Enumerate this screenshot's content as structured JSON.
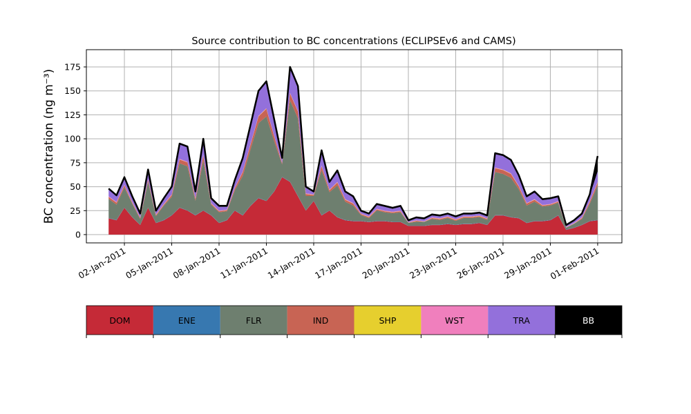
{
  "chart_data": {
    "type": "area",
    "stacked": true,
    "title": "Source contribution to BC concentrations (ECLIPSEv6 and CAMS)",
    "xlabel": "",
    "ylabel": "BC concentration (ng m⁻³)",
    "ylim": [
      -9,
      193
    ],
    "yticks": [
      0,
      25,
      50,
      75,
      100,
      125,
      150,
      175
    ],
    "x_start": "2011-01-01T00:00",
    "x_step_hours": 12,
    "x_range_days": [
      -1.4,
      32.5
    ],
    "xtick_labels": [
      "02-Jan-2011",
      "05-Jan-2011",
      "08-Jan-2011",
      "11-Jan-2011",
      "14-Jan-2011",
      "17-Jan-2011",
      "20-Jan-2011",
      "23-Jan-2011",
      "26-Jan-2011",
      "29-Jan-2011",
      "01-Feb-2011"
    ],
    "xtick_days": [
      1,
      4,
      7,
      10,
      13,
      16,
      19,
      22,
      25,
      28,
      31
    ],
    "grid": true,
    "series": [
      {
        "name": "DOM",
        "color": "#c52a37",
        "values": [
          17,
          15,
          28,
          18,
          10,
          28,
          12,
          15,
          20,
          28,
          25,
          20,
          25,
          20,
          12,
          15,
          25,
          20,
          30,
          38,
          35,
          45,
          60,
          55,
          40,
          25,
          35,
          20,
          25,
          18,
          15,
          14,
          14,
          13,
          14,
          14,
          13,
          13,
          9,
          9,
          9,
          10,
          10,
          11,
          10,
          11,
          11,
          12,
          10,
          20,
          20,
          18,
          17,
          12,
          14,
          14,
          15,
          20,
          5,
          7,
          10,
          14,
          15
        ]
      },
      {
        "name": "ENE",
        "color": "#3778b0",
        "values": [
          0.3,
          0.3,
          0.3,
          0.3,
          0.3,
          0.3,
          0.3,
          0.3,
          0.3,
          0.3,
          0.3,
          0.3,
          0.3,
          0.3,
          0.3,
          0.3,
          0.3,
          0.3,
          0.3,
          0.3,
          0.3,
          0.3,
          0.3,
          0.3,
          0.3,
          0.3,
          0.3,
          0.3,
          0.3,
          0.3,
          0.3,
          0.3,
          0.3,
          0.3,
          0.3,
          0.3,
          0.3,
          0.3,
          0.3,
          0.3,
          0.3,
          0.3,
          0.3,
          0.3,
          0.3,
          0.3,
          0.3,
          0.3,
          0.3,
          0.3,
          0.3,
          0.3,
          0.3,
          0.3,
          0.3,
          0.3,
          0.3,
          0.3,
          0.3,
          0.3,
          0.3,
          0.3,
          0.3
        ]
      },
      {
        "name": "FLR",
        "color": "#6e7f6f",
        "values": [
          20,
          16,
          21,
          14,
          6,
          27,
          7,
          15,
          19,
          46,
          46,
          15,
          52,
          11,
          11,
          9,
          21,
          41,
          59,
          78,
          88,
          52,
          13,
          85,
          81,
          15,
          5,
          47,
          19,
          33,
          19,
          16,
          6,
          4,
          11,
          9,
          9,
          10,
          3,
          4,
          4,
          6,
          5,
          6,
          4,
          6,
          6,
          6,
          5,
          45,
          43,
          41,
          30,
          18,
          20,
          15,
          15,
          13,
          2,
          4,
          6,
          18,
          36
        ]
      },
      {
        "name": "IND",
        "color": "#c86454",
        "values": [
          2,
          2,
          2,
          1,
          1,
          2,
          1,
          1,
          2,
          4,
          4,
          2,
          5,
          1,
          1,
          1,
          2,
          4,
          5,
          7,
          8,
          5,
          1,
          7,
          7,
          2,
          1,
          4,
          2,
          3,
          2,
          2,
          1,
          1,
          1,
          1,
          1,
          1,
          0,
          1,
          0,
          1,
          1,
          1,
          1,
          1,
          1,
          1,
          1,
          4,
          4,
          4,
          3,
          2,
          2,
          1,
          1,
          1,
          0,
          0,
          1,
          2,
          3
        ]
      },
      {
        "name": "SHP",
        "color": "#e6cf2e",
        "values": [
          0.2,
          0.2,
          0.2,
          0.2,
          0.2,
          0.2,
          0.2,
          0.2,
          0.2,
          0.2,
          0.2,
          0.2,
          0.2,
          0.2,
          0.2,
          0.2,
          0.2,
          0.2,
          0.2,
          0.2,
          0.2,
          0.2,
          0.2,
          0.2,
          0.2,
          0.2,
          0.2,
          0.2,
          0.2,
          0.2,
          0.2,
          0.2,
          0.2,
          0.2,
          0.2,
          0.2,
          0.2,
          0.2,
          0.2,
          0.2,
          0.2,
          0.2,
          0.2,
          0.2,
          0.2,
          0.2,
          0.2,
          0.2,
          0.2,
          0.2,
          0.2,
          0.2,
          0.2,
          0.2,
          0.2,
          0.2,
          0.2,
          0.2,
          0.2,
          0.2,
          0.2,
          0.2,
          0.2
        ]
      },
      {
        "name": "WST",
        "color": "#f07fbd",
        "values": [
          0.5,
          0.5,
          0.5,
          0.5,
          0.5,
          0.5,
          0.5,
          0.5,
          0.5,
          0.5,
          0.5,
          0.5,
          0.5,
          0.5,
          0.5,
          0.5,
          0.5,
          0.5,
          0.5,
          0.5,
          0.5,
          0.5,
          0.5,
          0.5,
          0.5,
          0.5,
          0.5,
          0.5,
          0.5,
          0.5,
          0.5,
          0.5,
          0.5,
          0.5,
          0.5,
          0.5,
          0.5,
          0.5,
          0.5,
          0.5,
          0.5,
          0.5,
          0.5,
          0.5,
          0.5,
          0.5,
          0.5,
          0.5,
          0.5,
          0.5,
          0.5,
          0.5,
          0.5,
          0.5,
          0.5,
          0.5,
          0.5,
          0.5,
          0.5,
          0.5,
          0.5,
          0.5,
          0.5
        ]
      },
      {
        "name": "TRA",
        "color": "#9370db",
        "values": [
          7,
          6,
          7,
          5,
          3,
          9,
          3,
          5,
          7,
          15,
          15,
          6,
          16,
          4,
          4,
          3,
          7,
          13,
          19,
          25,
          27,
          16,
          4,
          26,
          25,
          6,
          2,
          15,
          7,
          11,
          7,
          6,
          2,
          2,
          4,
          4,
          3,
          4,
          1,
          2,
          2,
          2,
          2,
          2,
          2,
          2,
          2,
          2,
          2,
          14,
          14,
          13,
          10,
          6,
          7,
          5,
          5,
          4,
          1,
          2,
          3,
          6,
          11
        ]
      },
      {
        "name": "BB",
        "color": "#000000",
        "values": [
          1,
          1,
          1,
          1,
          1,
          1,
          1,
          1,
          1,
          1,
          1,
          1,
          1,
          1,
          1,
          1,
          1,
          1,
          1,
          1,
          1,
          1,
          1,
          1,
          1,
          1,
          1,
          1,
          1,
          1,
          1,
          1,
          1,
          1,
          1,
          1,
          1,
          1,
          1,
          1,
          1,
          1,
          1,
          1,
          1,
          1,
          1,
          1,
          1,
          1,
          1,
          1,
          1,
          1,
          1,
          1,
          1,
          1,
          1,
          1,
          1,
          1,
          16
        ]
      }
    ],
    "legend": {
      "placement": "bottom",
      "style": "colorbar",
      "entries": [
        "DOM",
        "ENE",
        "FLR",
        "IND",
        "SHP",
        "WST",
        "TRA",
        "BB"
      ]
    }
  }
}
